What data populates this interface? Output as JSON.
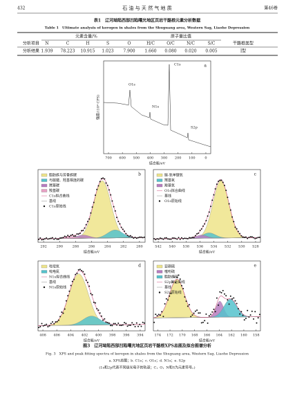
{
  "header": {
    "page": "432",
    "journal": "石 油 与 天 然 气 地 质",
    "volume": "第46卷"
  },
  "table": {
    "title": "表1　辽河坳陷西部凹陷曙光地区页岩干酪根元素分析数据",
    "title_en": "Table 1　Ultimate analysis of kerogen in shales from the Shuguang area, Western Sag, Liaohe Depression",
    "group_headers": [
      "分析项目",
      "元素含量/%",
      "原子量比值",
      "干酪根类型"
    ],
    "columns": [
      "N",
      "C",
      "H",
      "S",
      "O",
      "H/C",
      "O/C",
      "N/C",
      "S/C"
    ],
    "row": [
      "分析结果",
      "1.939",
      "78.223",
      "10.915",
      "1.023",
      "7.900",
      "1.660",
      "0.080",
      "0.020",
      "0.005",
      "Ⅰ型"
    ]
  },
  "figure": {
    "panels": [
      {
        "label": "a",
        "x_label": "结合能/eV",
        "y_label": "强度/(10⁴ CPS)",
        "xticks": [
          700,
          600,
          500,
          400,
          300,
          200,
          100,
          0
        ],
        "peaks": [
          "O1s",
          "N1s",
          "C1s",
          "S2p"
        ]
      },
      {
        "label": "b",
        "x_label": "结合能/eV",
        "xticks": [
          292,
          290,
          288,
          286,
          284,
          282,
          280
        ],
        "legend": [
          "脂肪族与芳香族碳",
          "与醚键、羟基相连的碳",
          "羰基碳",
          "羧基碳",
          "C1s拟合曲线",
          "基线",
          "C1s原始线"
        ]
      },
      {
        "label": "c",
        "x_label": "结合能/eV",
        "xticks": [
          542,
          540,
          538,
          536,
          534,
          532,
          530,
          528
        ],
        "legend": [
          "醚-氧单键氧",
          "羰基氧",
          "羧基氧",
          "O1s拟合曲线",
          "基线",
          "O1s原始线"
        ]
      },
      {
        "label": "d",
        "x_label": "结合能/eV",
        "xticks": [
          408,
          406,
          404,
          402,
          400,
          398,
          396,
          394
        ],
        "legend": [
          "吡啶氮",
          "吡咯氮",
          "N1s拟合曲线",
          "基线",
          "N1s原始线"
        ]
      },
      {
        "label": "e",
        "x_label": "结合能/eV",
        "xticks": [
          174,
          172,
          170,
          168,
          166,
          164,
          162,
          160,
          158
        ],
        "legend": [
          "亚砜硫",
          "噻吩硫",
          "脂肪族硫",
          "S2p拟合曲线",
          "基线",
          "S2p原始线"
        ]
      }
    ],
    "caption": "图3　辽河坳陷西部凹陷曙光地区页岩干酪根XPS总图及拟合图谱分析",
    "caption_en": "Fig. 3　XPS and peak fitting spectra of kerogen in shales from the Shuguang area, Western Sag, Liaohe Depression",
    "subcaption": "a. XPS总图；b. C1s；c. O1s；d. N1s；e. S2p",
    "note": "(1s和2p代表不同级光电子的轨道；C，O，N和S为元素符号。)"
  }
}
